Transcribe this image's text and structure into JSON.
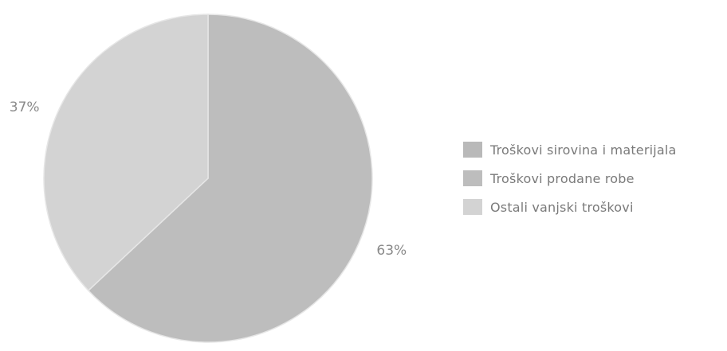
{
  "chart_data": {
    "type": "pie",
    "categories": [
      "Troškovi sirovina i materijala",
      "Troškovi prodane robe",
      "Ostali vanjski troškovi"
    ],
    "values": [
      0,
      63,
      37
    ],
    "value_labels": [
      "",
      "63%",
      "37%"
    ],
    "colors": [
      "#b9b9b9",
      "#bdbdbd",
      "#d3d3d3"
    ],
    "legend_position": "right"
  }
}
